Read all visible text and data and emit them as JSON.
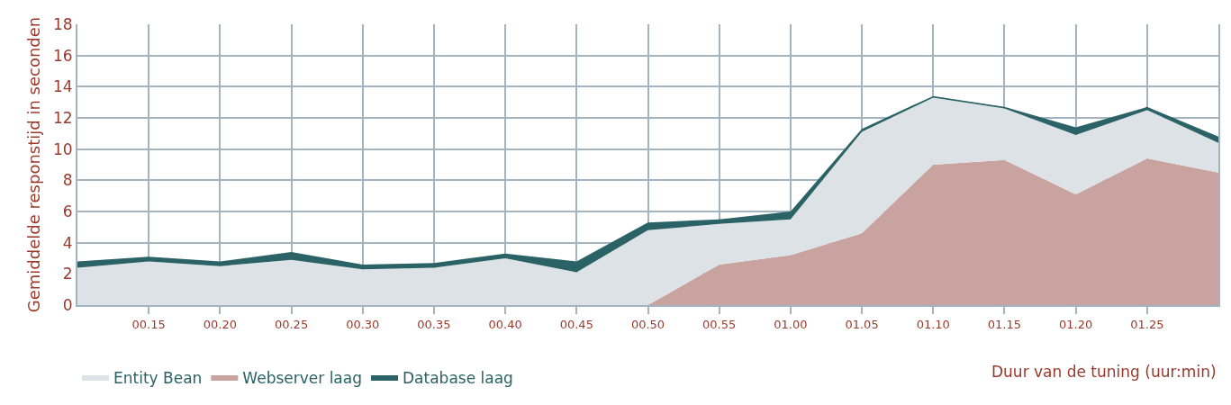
{
  "chart_data": {
    "type": "area",
    "stacked": true,
    "xlabel": "Duur van de tuning (uur:min)",
    "ylabel": "Gemiddelde responstijd in seconden",
    "categories": [
      null,
      "00.15",
      "00.20",
      "00.25",
      "00.30",
      "00.35",
      "00.40",
      "00.45",
      "00.50",
      "00.55",
      "01.00",
      "01.05",
      "01.10",
      "01.15",
      "01.20",
      "01.25",
      null
    ],
    "series": [
      {
        "name": "Webserver laag",
        "color": "#c9a39f",
        "values": [
          0,
          0,
          0,
          0,
          0,
          0,
          0,
          0,
          0,
          2.6,
          3.2,
          4.6,
          9.0,
          9.3,
          7.1,
          9.4,
          8.5
        ]
      },
      {
        "name": "Entity Bean",
        "color": "#dde2e6",
        "values": [
          2.4,
          2.8,
          2.5,
          2.9,
          2.3,
          2.4,
          3.0,
          2.1,
          4.8,
          2.6,
          2.3,
          6.5,
          4.3,
          3.3,
          3.8,
          3.1,
          1.9
        ]
      },
      {
        "name": "Database laag",
        "color": "#2b6265",
        "values": [
          0.4,
          0.3,
          0.3,
          0.5,
          0.3,
          0.3,
          0.3,
          0.7,
          0.5,
          0.3,
          0.5,
          0.2,
          0.1,
          0.1,
          0.5,
          0.2,
          0.4
        ]
      }
    ],
    "ylim": [
      0,
      18
    ],
    "yticks": [
      0,
      2,
      4,
      6,
      8,
      10,
      12,
      14,
      16,
      18
    ],
    "grid": true,
    "legend": "bottom left"
  }
}
